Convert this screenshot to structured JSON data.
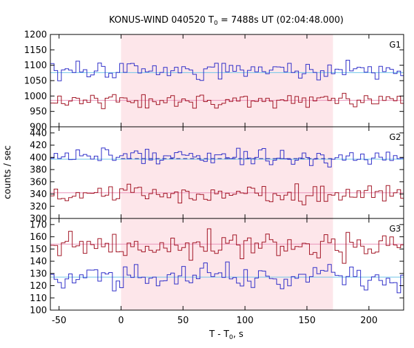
{
  "chart_data": {
    "type": "line",
    "title_main": "KONUS-WIND 040520 T",
    "title_sub": "0",
    "title_rest": " = 7488s UT (02:04:48.000)",
    "ylabel": "counts / sec",
    "xlabel_main": "T - T",
    "xlabel_sub": "0",
    "xlabel_rest": ", s",
    "xlim": [
      -57,
      228
    ],
    "x_ticks": [
      -50,
      0,
      50,
      100,
      150,
      200
    ],
    "x_tick_labels": [
      "-50",
      "0",
      "50",
      "100",
      "150",
      "200"
    ],
    "highlight_interval": [
      0,
      171
    ],
    "colors": {
      "blue": "#2b2bc8",
      "red": "#a01020",
      "blue_bg": "#6cc4e8",
      "red_bg": "#e890b8",
      "highlight": "#fde6ea",
      "dashed": "#2020a0"
    },
    "panels": [
      {
        "label": "G1",
        "ylim": [
          900,
          1200
        ],
        "y_ticks": [
          900,
          950,
          1000,
          1050,
          1100,
          1150,
          1200
        ],
        "y_tick_labels": [
          "900",
          "950",
          "1000",
          "1050",
          "1100",
          "1150",
          "1200"
        ],
        "series": [
          {
            "color": "blue",
            "bg_level": 1076,
            "bg_color": "blue_bg",
            "mean": 1085,
            "amp": 18,
            "seed": 11
          },
          {
            "color": "red",
            "bg_level": 986,
            "bg_color": "red_bg",
            "mean": 985,
            "amp": 16,
            "seed": 23
          }
        ]
      },
      {
        "label": "G2",
        "ylim": [
          300,
          450
        ],
        "y_ticks": [
          300,
          320,
          340,
          360,
          380,
          400,
          420,
          440
        ],
        "y_tick_labels": [
          "300",
          "320",
          "340",
          "360",
          "380",
          "400",
          "420",
          "440"
        ],
        "dashed_level": 398,
        "series": [
          {
            "color": "blue",
            "bg_level": 397,
            "bg_color": "blue_bg",
            "mean": 400,
            "amp": 9,
            "seed": 37
          },
          {
            "color": "red",
            "bg_level": 342,
            "bg_color": "red_bg",
            "mean": 340,
            "amp": 9,
            "seed": 41
          }
        ]
      },
      {
        "label": "G3",
        "ylim": [
          100,
          175
        ],
        "y_ticks": [
          100,
          110,
          120,
          130,
          140,
          150,
          160,
          170
        ],
        "y_tick_labels": [
          "100",
          "110",
          "120",
          "130",
          "140",
          "150",
          "160",
          "170"
        ],
        "series": [
          {
            "color": "red",
            "bg_level": 154,
            "bg_color": "red_bg",
            "mean": 153,
            "amp": 7,
            "seed": 53
          },
          {
            "color": "blue",
            "bg_level": 127,
            "bg_color": "blue_bg",
            "mean": 127,
            "amp": 7,
            "seed": 67
          }
        ]
      }
    ]
  }
}
